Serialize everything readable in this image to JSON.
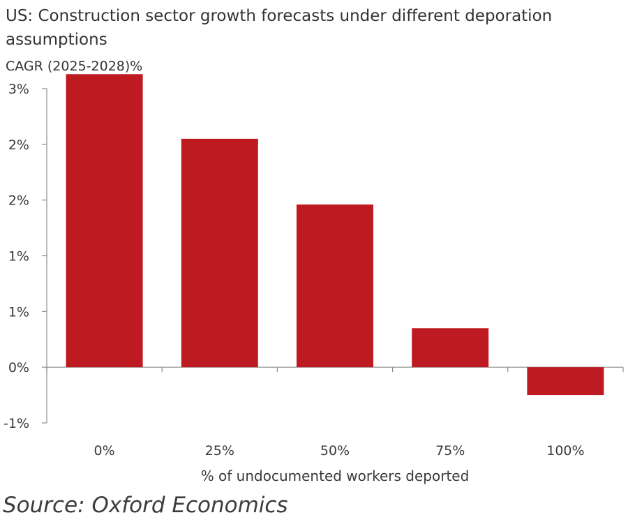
{
  "chart_data": {
    "type": "bar",
    "title": "US: Construction sector growth forecasts under different deporation assumptions",
    "subtitle": "CAGR (2025-2028)%",
    "xlabel": "% of undocumented workers deported",
    "ylabel": "",
    "categories": [
      "0%",
      "25%",
      "50%",
      "75%",
      "100%"
    ],
    "series": [
      {
        "values": [
          2.63,
          2.05,
          1.46,
          0.35,
          -0.25
        ]
      }
    ],
    "ylim": [
      -0.5,
      2.5
    ],
    "yticks": [
      -0.5,
      0,
      0.5,
      1,
      1.5,
      2,
      2.5
    ],
    "ytick_labels": [
      "-1%",
      "0%",
      "1%",
      "1%",
      "2%",
      "2%",
      "3%"
    ],
    "grid": false,
    "legend": "none",
    "bar_color": "#be1a22"
  },
  "source": "Source: Oxford Economics"
}
